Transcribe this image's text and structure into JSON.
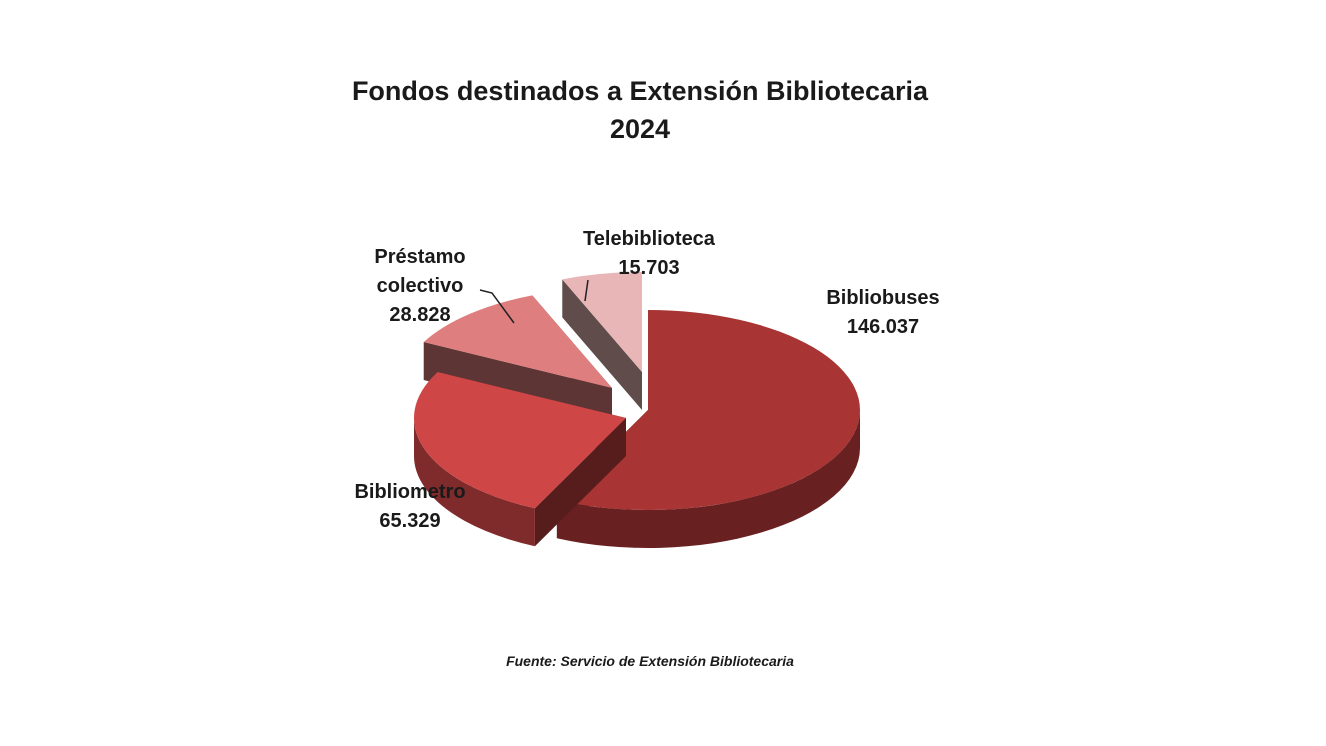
{
  "chart_data": {
    "type": "pie",
    "title": "Fondos destinados a Extensión Bibliotecaria",
    "subtitle": "2024",
    "slices": [
      {
        "name": "Bibliobuses",
        "label_lines": [
          "Bibliobuses"
        ],
        "value": 146037,
        "value_label": "146.037",
        "color": "#a83434"
      },
      {
        "name": "Bibliometro",
        "label_lines": [
          "Bibliometro"
        ],
        "value": 65329,
        "value_label": "65.329",
        "color": "#cf4646"
      },
      {
        "name": "Préstamo colectivo",
        "label_lines": [
          "Préstamo",
          "colectivo"
        ],
        "value": 28828,
        "value_label": "28.828",
        "color": "#df7e7e"
      },
      {
        "name": "Telebiblioteca",
        "label_lines": [
          "Telebiblioteca"
        ],
        "value": 15703,
        "value_label": "15.703",
        "color": "#e8b6b6"
      }
    ],
    "exploded": true,
    "style": "3d"
  },
  "source": "Fuente: Servicio de Extensión Bibliotecaria"
}
